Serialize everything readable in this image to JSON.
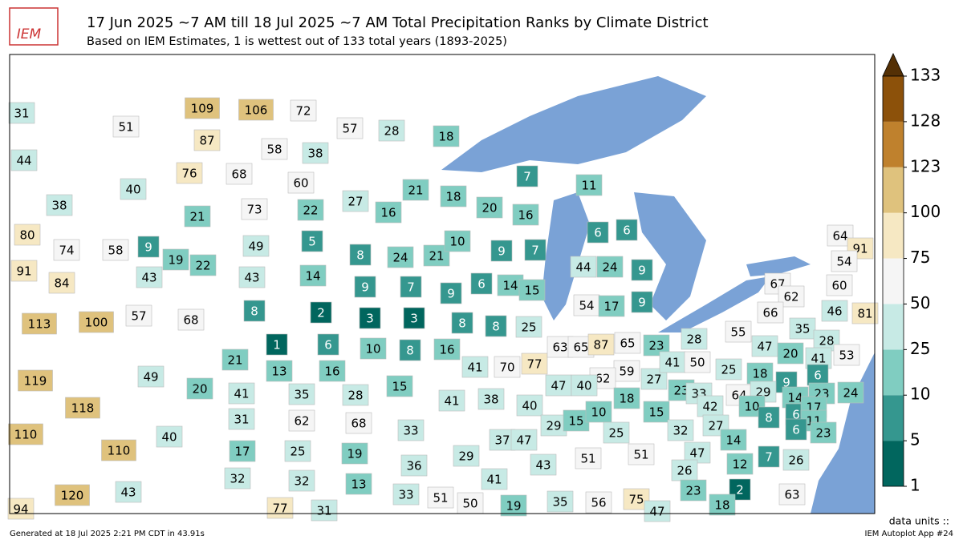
{
  "header": {
    "logo": "IEM",
    "title": "17 Jun 2025 ~7 AM till 18 Jul 2025 ~7 AM Total Precipitation Ranks by Climate District",
    "subtitle": "Based on IEM Estimates, 1 is wettest out of 133 total years (1893-2025)"
  },
  "colorbar": {
    "ticks": [
      1,
      5,
      10,
      25,
      50,
      75,
      100,
      123,
      128,
      133
    ],
    "colors": [
      "#01665e",
      "#35978f",
      "#80cdc1",
      "#c7eae5",
      "#f5f5f5",
      "#f6e8c3",
      "#dfc27d",
      "#bf812d",
      "#8c510a"
    ],
    "extend_color": "#543005",
    "units": "data units ::"
  },
  "ranks": [
    31,
    51,
    44,
    38,
    40,
    109,
    106,
    72,
    87,
    58,
    38,
    57,
    28,
    18,
    76,
    68,
    60,
    27,
    21,
    16,
    18,
    20,
    16,
    7,
    11,
    80,
    74,
    58,
    9,
    21,
    73,
    22,
    91,
    84,
    43,
    19,
    22,
    49,
    5,
    8,
    24,
    21,
    10,
    9,
    7,
    6,
    6,
    44,
    24,
    9,
    43,
    14,
    9,
    7,
    9,
    6,
    14,
    15,
    54,
    17,
    9,
    113,
    100,
    57,
    68,
    8,
    2,
    3,
    3,
    8,
    8,
    25,
    1,
    6,
    10,
    8,
    16,
    41,
    70,
    77,
    63,
    65,
    87,
    65,
    23,
    28,
    55,
    47,
    35,
    28,
    64,
    91,
    54,
    67,
    62,
    60,
    66,
    46,
    81,
    20,
    41,
    53,
    119,
    49,
    21,
    13,
    16,
    20,
    41,
    35,
    28,
    15,
    118,
    59,
    62,
    47,
    40,
    27,
    41,
    50,
    25,
    18,
    9,
    6,
    24,
    110,
    40,
    110,
    31,
    62,
    68,
    33,
    41,
    38,
    40,
    29,
    15,
    10,
    18,
    23,
    33,
    15,
    64,
    29,
    14,
    23,
    42,
    10,
    6,
    17,
    8,
    11,
    27,
    32,
    6,
    23,
    37,
    47,
    25,
    17,
    25,
    19,
    36,
    29,
    43,
    51,
    51,
    14,
    47,
    7,
    26,
    12,
    26,
    94,
    120,
    43,
    32,
    32,
    13,
    41,
    33,
    51,
    50,
    19,
    35,
    56,
    75,
    23,
    2,
    18,
    63,
    77,
    31,
    47
  ],
  "footer": {
    "generated": "Generated at 18 Jul 2025 2:21 PM CDT in 43.91s",
    "app": "IEM Autoplot App #24"
  }
}
